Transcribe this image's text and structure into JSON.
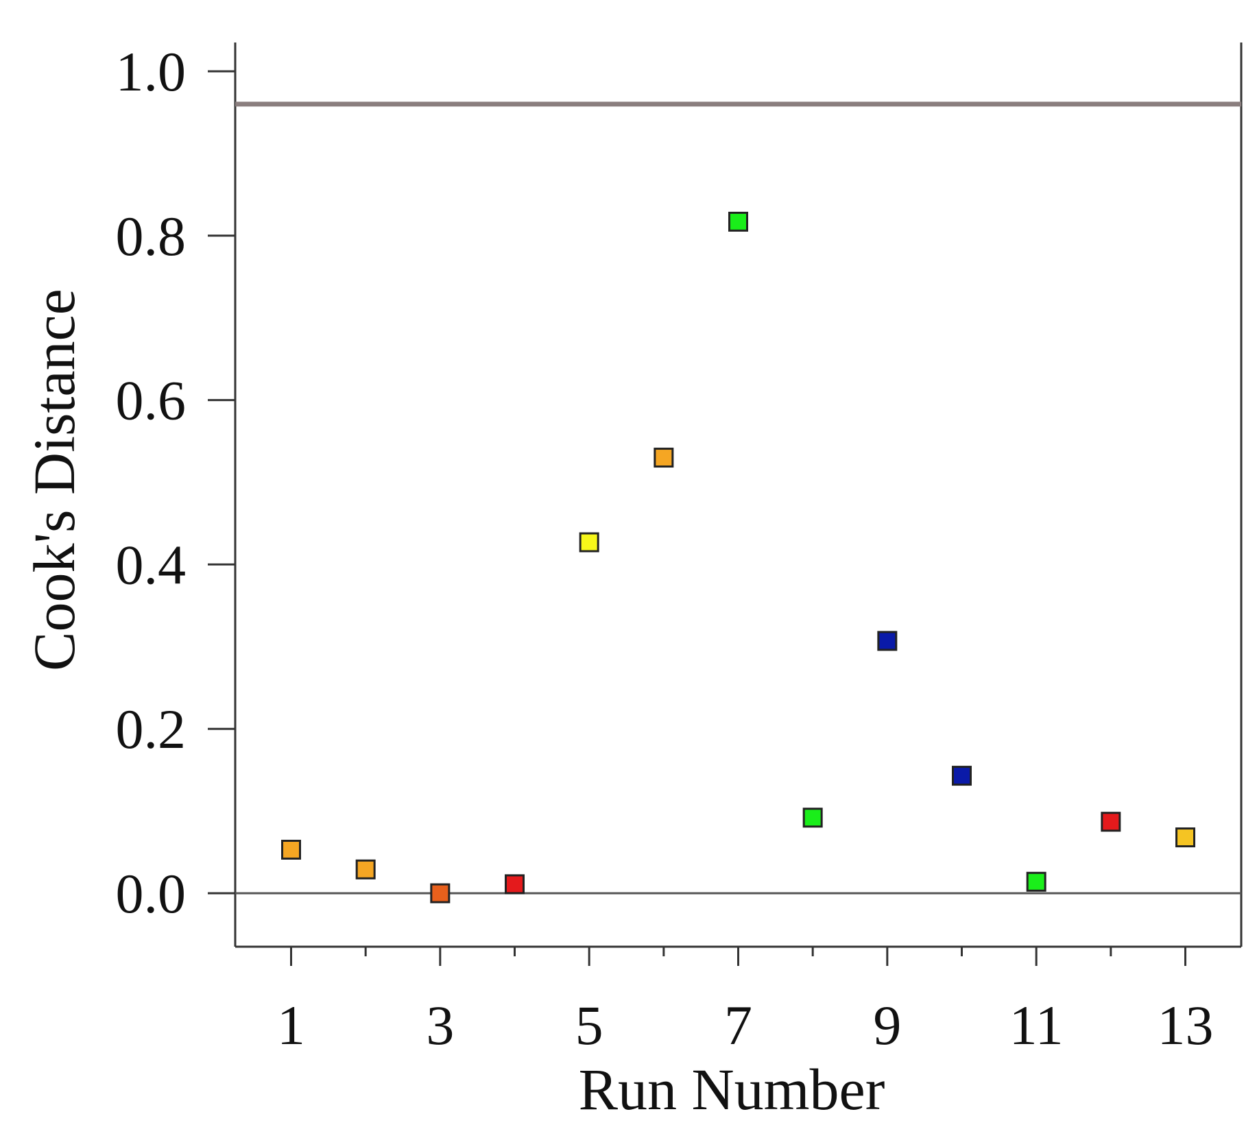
{
  "chart_data": {
    "type": "scatter",
    "title": "",
    "xlabel": "Run Number",
    "ylabel": "Cook's Distance",
    "xlim": [
      0.25,
      13.75
    ],
    "ylim": [
      -0.065,
      1.035
    ],
    "x_ticks_major": [
      1,
      3,
      5,
      7,
      9,
      11,
      13
    ],
    "x_tick_labels": [
      "1",
      "3",
      "5",
      "7",
      "9",
      "11",
      "13"
    ],
    "x_ticks_minor": [
      2,
      4,
      6,
      8,
      10,
      12
    ],
    "y_ticks": [
      0.0,
      0.2,
      0.4,
      0.6,
      0.8,
      1.0
    ],
    "y_tick_labels": [
      "0.0",
      "0.2",
      "0.4",
      "0.6",
      "0.8",
      "1.0"
    ],
    "grid": false,
    "reference_line": {
      "y": 0.96,
      "color": "#8a7e7e"
    },
    "zero_line": {
      "y": 0.0,
      "color": "#555555"
    },
    "points": [
      {
        "x": 1,
        "y": 0.053,
        "color": "#f5a623"
      },
      {
        "x": 2,
        "y": 0.029,
        "color": "#f5a623"
      },
      {
        "x": 3,
        "y": 0.0,
        "color": "#e8601c"
      },
      {
        "x": 4,
        "y": 0.011,
        "color": "#e41a1c"
      },
      {
        "x": 5,
        "y": 0.427,
        "color": "#f7f71a"
      },
      {
        "x": 6,
        "y": 0.53,
        "color": "#f5a623"
      },
      {
        "x": 7,
        "y": 0.817,
        "color": "#1aee1a"
      },
      {
        "x": 8,
        "y": 0.092,
        "color": "#1aee1a"
      },
      {
        "x": 9,
        "y": 0.307,
        "color": "#0a1aa8"
      },
      {
        "x": 10,
        "y": 0.143,
        "color": "#0a1aa8"
      },
      {
        "x": 11,
        "y": 0.014,
        "color": "#1aee1a"
      },
      {
        "x": 12,
        "y": 0.087,
        "color": "#e41a1c"
      },
      {
        "x": 13,
        "y": 0.068,
        "color": "#f5c423"
      }
    ]
  }
}
